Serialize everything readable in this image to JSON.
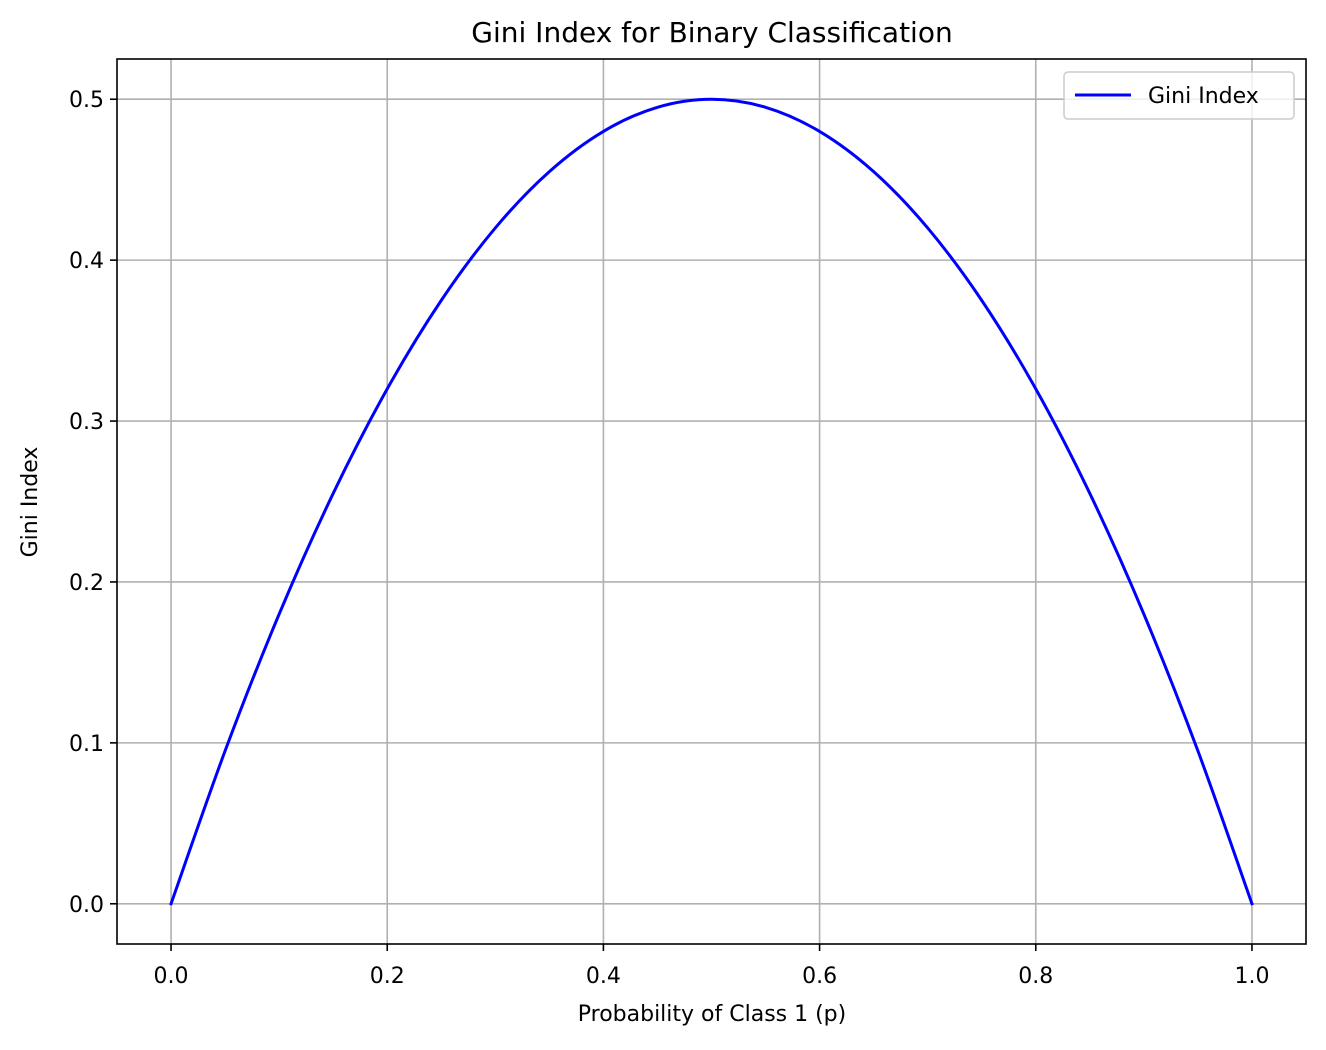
{
  "chart_data": {
    "type": "line",
    "title": "Gini Index for Binary Classification",
    "xlabel": "Probability of Class 1 (p)",
    "ylabel": "Gini Index",
    "xlim": [
      -0.05,
      1.05
    ],
    "ylim": [
      -0.025,
      0.525
    ],
    "xticks": [
      0.0,
      0.2,
      0.4,
      0.6,
      0.8,
      1.0
    ],
    "xtick_labels": [
      "0.0",
      "0.2",
      "0.4",
      "0.6",
      "0.8",
      "1.0"
    ],
    "yticks": [
      0.0,
      0.1,
      0.2,
      0.3,
      0.4,
      0.5
    ],
    "ytick_labels": [
      "0.0",
      "0.1",
      "0.2",
      "0.3",
      "0.4",
      "0.5"
    ],
    "grid": true,
    "legend_position": "top-right",
    "series": [
      {
        "name": "Gini Index",
        "color": "#0000ff",
        "x": [
          0.0,
          0.05,
          0.1,
          0.15,
          0.2,
          0.25,
          0.3,
          0.35,
          0.4,
          0.45,
          0.5,
          0.55,
          0.6,
          0.65,
          0.7,
          0.75,
          0.8,
          0.85,
          0.9,
          0.95,
          1.0
        ],
        "y": [
          0.0,
          0.095,
          0.18,
          0.255,
          0.32,
          0.375,
          0.42,
          0.455,
          0.48,
          0.495,
          0.5,
          0.495,
          0.48,
          0.455,
          0.42,
          0.375,
          0.32,
          0.255,
          0.18,
          0.095,
          0.0
        ]
      }
    ]
  }
}
